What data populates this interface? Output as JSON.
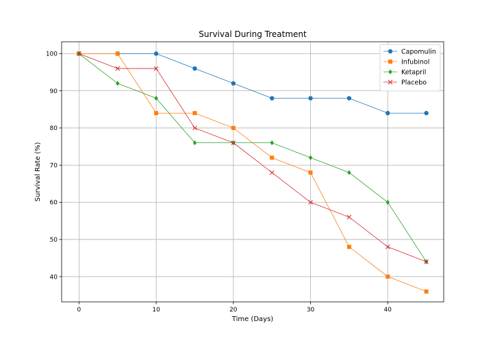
{
  "chart_data": {
    "type": "line",
    "title": "Survival During Treatment",
    "xlabel": "Time (Days)",
    "ylabel": "Survival Rate (%)",
    "xlim": [
      -2.25,
      47.25
    ],
    "ylim": [
      33.2,
      103.2
    ],
    "xticks": [
      0,
      10,
      20,
      30,
      40
    ],
    "yticks": [
      40,
      50,
      60,
      70,
      80,
      90,
      100
    ],
    "grid": true,
    "legend_position": "top-right",
    "x": [
      0,
      5,
      10,
      15,
      20,
      25,
      30,
      35,
      40,
      45
    ],
    "series": [
      {
        "name": "Capomulin",
        "color": "#1f77b4",
        "marker": "circle",
        "values": [
          100,
          100,
          100,
          96,
          92,
          88,
          88,
          88,
          84,
          84
        ]
      },
      {
        "name": "Infubinol",
        "color": "#ff7f0e",
        "marker": "square",
        "values": [
          100,
          100,
          84,
          84,
          80,
          72,
          68,
          48,
          40,
          36
        ]
      },
      {
        "name": "Ketapril",
        "color": "#2ca02c",
        "marker": "diamond",
        "values": [
          100,
          92,
          88,
          76,
          76,
          76,
          72,
          68,
          60,
          44
        ]
      },
      {
        "name": "Placebo",
        "color": "#d62728",
        "marker": "x",
        "values": [
          100,
          96,
          96,
          80,
          76,
          68,
          60,
          56,
          48,
          44
        ]
      }
    ]
  }
}
